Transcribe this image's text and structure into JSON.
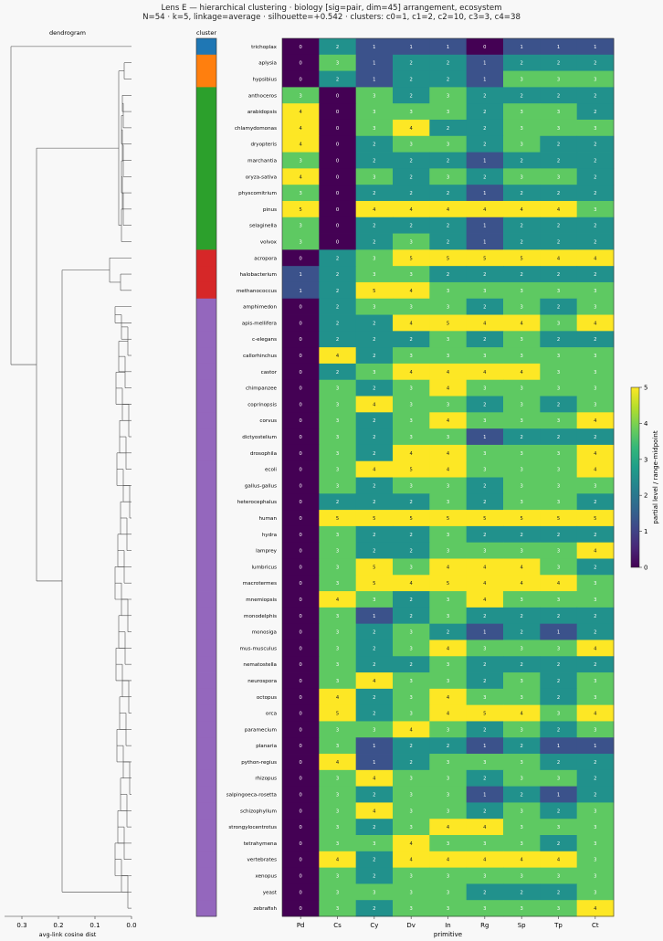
{
  "chart_data": {
    "type": "heatmap",
    "title": "Lens E — hierarchical clustering · biology [sig=pair, dim=45] arrangement, ecosystem",
    "subtitle": "N=54 · k=5, linkage=average · silhouette=+0.542 · clusters: c0=1, c1=2, c2=10, c3=3, c4=38",
    "dendrogram_title": "dendrogram",
    "dendrogram_xlabel": "avg-link cosine dist",
    "dendrogram_ticks": [
      0.3,
      0.2,
      0.1,
      0.0
    ],
    "cluster_title": "cluster",
    "xlabel": "primitive",
    "colorbar_label": "partial level / range-midpoint",
    "colorbar_ticks": [
      0,
      1,
      2,
      3,
      4,
      5
    ],
    "zlim": [
      0,
      5
    ],
    "columns": [
      "Pd",
      "Cs",
      "Cy",
      "Dv",
      "In",
      "Rg",
      "Sp",
      "Tp",
      "Ct"
    ],
    "cluster_colors": [
      "#1f77b4",
      "#ff7f0e",
      "#2ca02c",
      "#d62728",
      "#9467bd"
    ],
    "rows": [
      "trichoplax",
      "aplysia",
      "hypsibius",
      "anthoceros",
      "arabidopsis",
      "chlamydomonas",
      "dryopteris",
      "marchantia",
      "oryza-sativa",
      "physcomitrium",
      "pinus",
      "selaginella",
      "volvox",
      "acropora",
      "halobacterium",
      "methanococcus",
      "amphimedon",
      "apis-mellifera",
      "c-elegans",
      "callorhinchus",
      "castor",
      "chimpanzee",
      "coprinopsis",
      "corvus",
      "dictyostelium",
      "drosophila",
      "ecoli",
      "gallus-gallus",
      "heterocephalus",
      "human",
      "hydra",
      "lamprey",
      "lumbricus",
      "macrotermes",
      "mnemiopsis",
      "monodelphis",
      "monosiga",
      "mus-musculus",
      "nematostella",
      "neurospora",
      "octopus",
      "orca",
      "paramecium",
      "planaria",
      "python-regius",
      "rhizopus",
      "salpingoeca-rosetta",
      "schizophyllum",
      "strongylocentrotus",
      "tetrahymena",
      "vertebrates",
      "xenopus",
      "yeast",
      "zebrafish"
    ],
    "row_clusters": [
      0,
      1,
      1,
      2,
      2,
      2,
      2,
      2,
      2,
      2,
      2,
      2,
      2,
      3,
      3,
      3,
      4,
      4,
      4,
      4,
      4,
      4,
      4,
      4,
      4,
      4,
      4,
      4,
      4,
      4,
      4,
      4,
      4,
      4,
      4,
      4,
      4,
      4,
      4,
      4,
      4,
      4,
      4,
      4,
      4,
      4,
      4,
      4,
      4,
      4,
      4,
      4,
      4,
      4
    ],
    "values": [
      [
        0,
        2,
        1,
        1,
        1,
        0,
        1,
        1,
        1
      ],
      [
        0,
        3,
        1,
        2,
        2,
        1,
        2,
        2,
        2
      ],
      [
        0,
        2,
        1,
        2,
        2,
        1,
        3,
        3,
        3
      ],
      [
        3,
        0,
        3,
        2,
        3,
        2,
        2,
        2,
        2
      ],
      [
        4,
        0,
        3,
        3,
        3,
        2,
        3,
        3,
        2
      ],
      [
        4,
        0,
        3,
        4,
        2,
        2,
        3,
        3,
        3
      ],
      [
        4,
        0,
        2,
        3,
        3,
        2,
        3,
        2,
        2
      ],
      [
        3,
        0,
        2,
        2,
        2,
        1,
        2,
        2,
        2
      ],
      [
        4,
        0,
        3,
        2,
        3,
        2,
        3,
        3,
        2
      ],
      [
        3,
        0,
        2,
        2,
        2,
        1,
        2,
        2,
        2
      ],
      [
        5,
        0,
        4,
        4,
        4,
        4,
        4,
        4,
        3
      ],
      [
        3,
        0,
        2,
        2,
        2,
        1,
        2,
        2,
        2
      ],
      [
        3,
        0,
        2,
        3,
        2,
        1,
        2,
        2,
        2
      ],
      [
        0,
        2,
        3,
        5,
        5,
        5,
        5,
        4,
        4
      ],
      [
        1,
        2,
        3,
        3,
        2,
        2,
        2,
        2,
        2
      ],
      [
        1,
        2,
        5,
        4,
        3,
        3,
        3,
        3,
        3
      ],
      [
        0,
        2,
        3,
        3,
        3,
        2,
        3,
        2,
        3
      ],
      [
        0,
        2,
        2,
        4,
        5,
        4,
        4,
        3,
        4
      ],
      [
        0,
        2,
        2,
        2,
        3,
        2,
        3,
        2,
        2
      ],
      [
        0,
        4,
        2,
        3,
        3,
        3,
        3,
        3,
        3
      ],
      [
        0,
        2,
        3,
        4,
        4,
        4,
        4,
        3,
        3
      ],
      [
        0,
        3,
        2,
        3,
        4,
        3,
        3,
        3,
        3
      ],
      [
        0,
        3,
        4,
        3,
        3,
        2,
        3,
        2,
        3
      ],
      [
        0,
        3,
        2,
        3,
        4,
        3,
        3,
        3,
        4
      ],
      [
        0,
        3,
        2,
        3,
        3,
        1,
        2,
        2,
        2
      ],
      [
        0,
        3,
        2,
        4,
        4,
        3,
        3,
        3,
        4
      ],
      [
        0,
        3,
        4,
        5,
        4,
        3,
        3,
        3,
        4
      ],
      [
        0,
        3,
        2,
        3,
        3,
        2,
        3,
        3,
        3
      ],
      [
        0,
        2,
        2,
        2,
        3,
        2,
        3,
        3,
        2
      ],
      [
        0,
        5,
        5,
        5,
        5,
        5,
        5,
        5,
        5
      ],
      [
        0,
        3,
        2,
        2,
        3,
        2,
        2,
        2,
        2
      ],
      [
        0,
        3,
        2,
        2,
        3,
        3,
        3,
        3,
        4
      ],
      [
        0,
        3,
        5,
        3,
        4,
        4,
        4,
        3,
        2
      ],
      [
        0,
        3,
        5,
        4,
        5,
        4,
        4,
        4,
        3
      ],
      [
        0,
        4,
        3,
        2,
        3,
        4,
        3,
        3,
        3
      ],
      [
        0,
        3,
        1,
        2,
        3,
        2,
        2,
        2,
        2
      ],
      [
        0,
        3,
        2,
        3,
        2,
        1,
        2,
        1,
        2
      ],
      [
        0,
        3,
        2,
        3,
        4,
        3,
        3,
        3,
        4
      ],
      [
        0,
        3,
        2,
        2,
        3,
        2,
        2,
        2,
        2
      ],
      [
        0,
        3,
        4,
        3,
        3,
        2,
        3,
        2,
        3
      ],
      [
        0,
        4,
        2,
        3,
        4,
        3,
        3,
        2,
        3
      ],
      [
        0,
        5,
        2,
        3,
        4,
        5,
        4,
        3,
        4
      ],
      [
        0,
        3,
        3,
        4,
        3,
        2,
        3,
        2,
        3
      ],
      [
        0,
        3,
        1,
        2,
        2,
        1,
        2,
        1,
        1
      ],
      [
        0,
        4,
        1,
        2,
        3,
        3,
        3,
        2,
        2
      ],
      [
        0,
        3,
        4,
        3,
        3,
        2,
        3,
        3,
        2
      ],
      [
        0,
        3,
        2,
        3,
        3,
        1,
        2,
        1,
        2
      ],
      [
        0,
        3,
        4,
        3,
        3,
        2,
        3,
        2,
        3
      ],
      [
        0,
        3,
        2,
        3,
        4,
        4,
        3,
        3,
        3
      ],
      [
        0,
        3,
        3,
        4,
        3,
        3,
        3,
        2,
        3
      ],
      [
        0,
        4,
        2,
        4,
        4,
        4,
        4,
        4,
        3
      ],
      [
        0,
        3,
        2,
        3,
        3,
        3,
        3,
        3,
        3
      ],
      [
        0,
        3,
        3,
        3,
        3,
        2,
        2,
        2,
        3
      ],
      [
        0,
        3,
        2,
        3,
        3,
        3,
        3,
        3,
        4
      ]
    ]
  }
}
